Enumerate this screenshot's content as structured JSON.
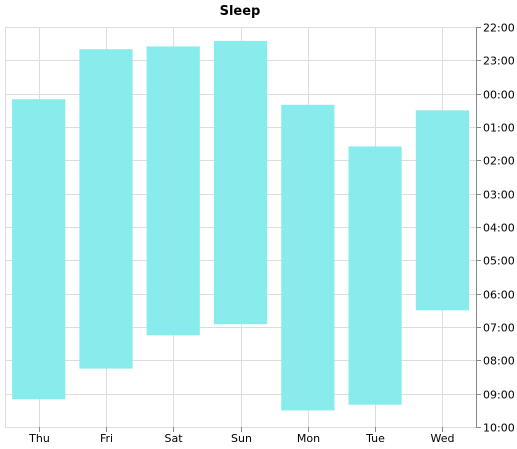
{
  "chart_data": {
    "type": "bar",
    "title": "Sleep",
    "categories": [
      "Thu",
      "Fri",
      "Sat",
      "Sun",
      "Mon",
      "Tue",
      "Wed"
    ],
    "series": [
      {
        "start": [
          "00:10",
          "22:40",
          "22:35",
          "22:25",
          "00:20",
          "01:35",
          "00:30"
        ],
        "end": [
          "09:10",
          "08:15",
          "07:15",
          "06:55",
          "09:30",
          "09:20",
          "06:30"
        ]
      }
    ],
    "y_axis": {
      "position": "right",
      "reversed": true,
      "range": [
        "22:00",
        "10:00"
      ],
      "ticks": [
        "22:00",
        "23:00",
        "00:00",
        "01:00",
        "02:00",
        "03:00",
        "04:00",
        "05:00",
        "06:00",
        "07:00",
        "08:00",
        "09:00",
        "10:00"
      ]
    },
    "bar_color": "#89ecec",
    "grid": true
  }
}
